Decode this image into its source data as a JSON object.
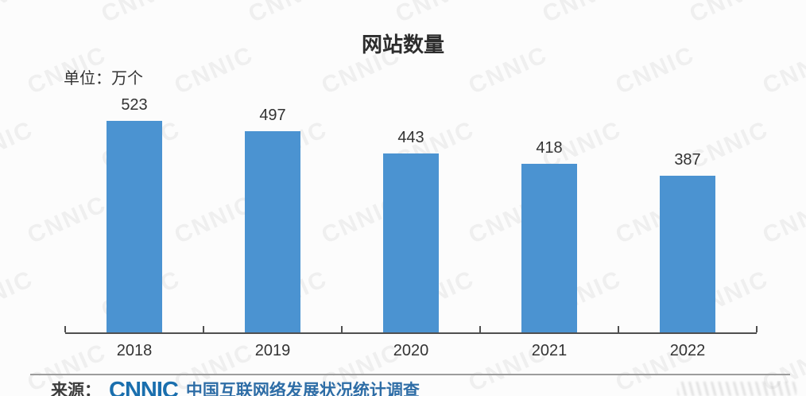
{
  "chart_data": {
    "type": "bar",
    "title": "网站数量",
    "unit_label": "单位：万个",
    "categories": [
      "2018",
      "2019",
      "2020",
      "2021",
      "2022"
    ],
    "values": [
      523,
      497,
      443,
      418,
      387
    ],
    "xlabel": "",
    "ylabel": "",
    "ylim": [
      0,
      560
    ],
    "grid": false,
    "legend": false,
    "value_labels_shown": true,
    "bar_color": "#4b93d1"
  },
  "watermark": {
    "text": "CNNIC"
  },
  "footer": {
    "source_prefix": "来源：",
    "logo_text": "CNNIC",
    "source_text": "中国互联网络发展状况统计调查"
  },
  "colors": {
    "bar": "#4b93d1",
    "axis": "#4f4f4f",
    "text": "#333333",
    "logo_blue": "#1a6fae",
    "footer_blue": "#2e6da6"
  }
}
